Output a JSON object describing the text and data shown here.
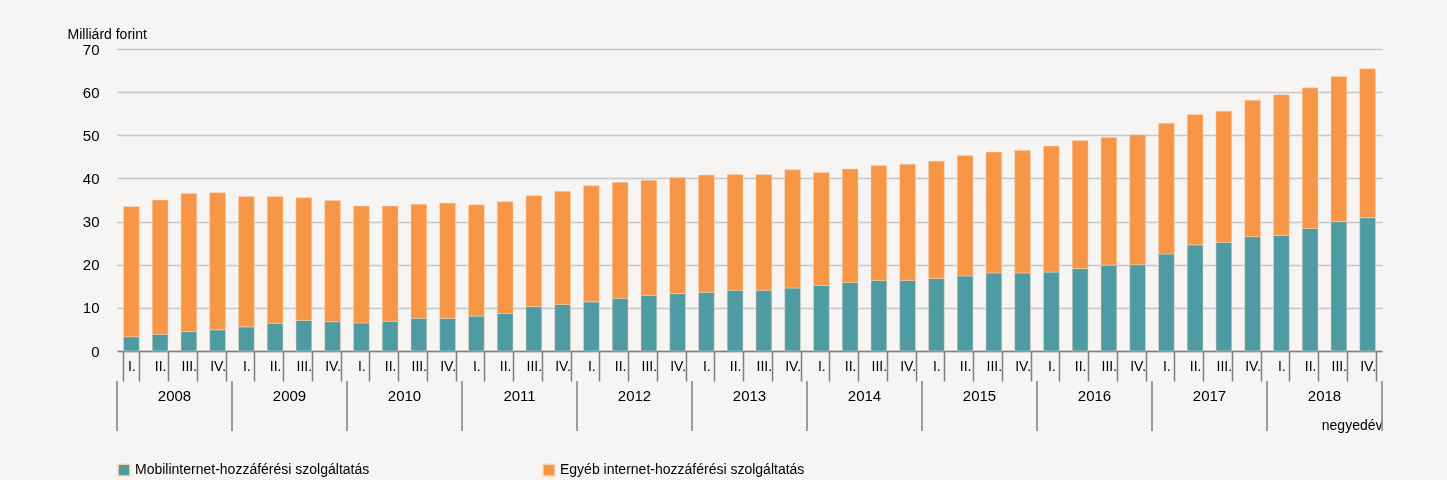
{
  "chart_data": {
    "type": "bar",
    "stacked": true,
    "ylabel": "Milliárd forint",
    "xlabel": "negyedév",
    "categories": [
      "I.",
      "II.",
      "III.",
      "IV.",
      "I.",
      "II.",
      "III.",
      "IV.",
      "I.",
      "II.",
      "III.",
      "IV.",
      "I.",
      "II.",
      "III.",
      "IV.",
      "I.",
      "II.",
      "III.",
      "IV.",
      "I.",
      "II.",
      "III.",
      "IV.",
      "I.",
      "II.",
      "III.",
      "IV.",
      "I.",
      "II.",
      "III.",
      "IV.",
      "I.",
      "II.",
      "III.",
      "IV.",
      "I.",
      "II.",
      "III.",
      "IV.",
      "I.",
      "II.",
      "III.",
      "IV."
    ],
    "annotations": [
      "2008",
      "2009",
      "2010",
      "2011",
      "2012",
      "2013",
      "2014",
      "2015",
      "2016",
      "2017",
      "2018"
    ],
    "series": [
      {
        "name": "Mobilinternet-hozzáférési szolgáltatás",
        "color": "#4f9ba4",
        "values": [
          3.3,
          3.9,
          4.5,
          4.9,
          5.6,
          6.4,
          7.1,
          6.8,
          6.5,
          6.9,
          7.6,
          7.6,
          8.1,
          8.7,
          10.3,
          10.8,
          11.4,
          12.2,
          12.9,
          13.3,
          13.6,
          14.1,
          14.1,
          14.6,
          15.2,
          15.9,
          16.4,
          16.4,
          16.8,
          17.4,
          18.1,
          18.1,
          18.3,
          19.1,
          19.9,
          20.0,
          22.5,
          24.6,
          25.2,
          26.5,
          26.8,
          28.4,
          30.0,
          30.9
        ]
      },
      {
        "name": "Egyéb internet-hozzáférési szolgáltatás",
        "color": "#f79646",
        "values": [
          30.2,
          31.1,
          32.0,
          31.8,
          30.2,
          29.4,
          28.4,
          28.1,
          27.1,
          26.7,
          26.4,
          26.7,
          25.8,
          25.9,
          25.7,
          26.2,
          26.9,
          26.9,
          26.7,
          26.9,
          27.2,
          26.8,
          26.8,
          27.4,
          26.2,
          26.3,
          26.6,
          26.9,
          27.2,
          27.9,
          28.0,
          28.4,
          29.2,
          29.7,
          29.6,
          30.1,
          30.3,
          30.2,
          30.4,
          31.6,
          32.6,
          32.6,
          33.6,
          34.5
        ]
      }
    ],
    "ylim": [
      0,
      70
    ],
    "yticks": [
      0,
      10,
      20,
      30,
      40,
      50,
      60,
      70
    ],
    "grid": "y",
    "legend": "bottom"
  }
}
